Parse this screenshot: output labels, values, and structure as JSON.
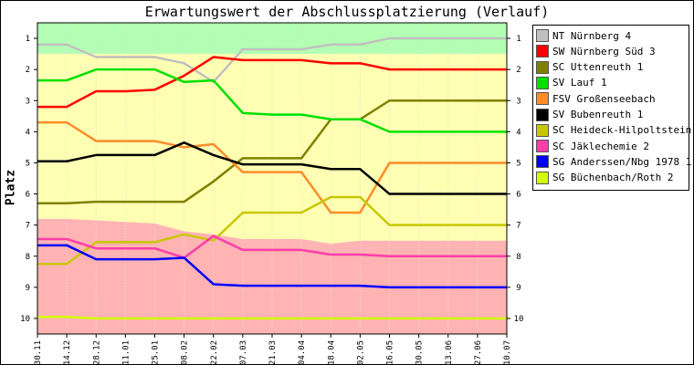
{
  "chart_data": {
    "type": "line",
    "title": "Erwartungswert der Abschlussplatzierung (Verlauf)",
    "ylabel": "Platz",
    "xlabel": "",
    "ylim": [
      0.5,
      10.5
    ],
    "y_inverted": true,
    "y_ticks": [
      1,
      2,
      3,
      4,
      5,
      6,
      7,
      8,
      9,
      10
    ],
    "categories": [
      "30.11",
      "14.12",
      "28.12",
      "11.01",
      "25.01",
      "08.02",
      "22.02",
      "07.03",
      "21.03",
      "04.04",
      "18.04",
      "02.05",
      "16.05",
      "30.05",
      "13.06",
      "27.06",
      "10.07"
    ],
    "bands": [
      {
        "name": "promotion",
        "color": "#b3ffb3",
        "upper_boundary": [
          0.5,
          0.5,
          0.5,
          0.5,
          0.5,
          0.5,
          0.5,
          0.5,
          0.5,
          0.5,
          0.5,
          0.5,
          0.5,
          0.5,
          0.5,
          0.5,
          0.5
        ],
        "lower_boundary": [
          1.5,
          1.5,
          1.5,
          1.5,
          1.5,
          1.5,
          1.5,
          1.5,
          1.5,
          1.5,
          1.5,
          1.5,
          1.5,
          1.5,
          1.5,
          1.5,
          1.5
        ]
      },
      {
        "name": "middle",
        "color": "#ffffb3",
        "upper_boundary": [
          1.5,
          1.5,
          1.5,
          1.5,
          1.5,
          1.5,
          1.5,
          1.5,
          1.5,
          1.5,
          1.5,
          1.5,
          1.5,
          1.5,
          1.5,
          1.5,
          1.5
        ],
        "lower_boundary": [
          6.8,
          6.8,
          6.85,
          6.9,
          6.95,
          7.2,
          7.3,
          7.45,
          7.45,
          7.45,
          7.6,
          7.5,
          7.5,
          7.5,
          7.5,
          7.5,
          7.5
        ]
      },
      {
        "name": "relegation",
        "color": "#ffb3b3",
        "upper_boundary": [
          6.8,
          6.8,
          6.85,
          6.9,
          6.95,
          7.2,
          7.3,
          7.45,
          7.45,
          7.45,
          7.6,
          7.5,
          7.5,
          7.5,
          7.5,
          7.5,
          7.5
        ],
        "lower_boundary": [
          10.5,
          10.5,
          10.5,
          10.5,
          10.5,
          10.5,
          10.5,
          10.5,
          10.5,
          10.5,
          10.5,
          10.5,
          10.5,
          10.5,
          10.5,
          10.5,
          10.5
        ]
      }
    ],
    "series": [
      {
        "name": "NT Nürnberg 4",
        "color": "#c0c0c0",
        "values": [
          1.2,
          1.2,
          1.6,
          1.6,
          1.6,
          1.8,
          2.4,
          1.35,
          1.35,
          1.35,
          1.2,
          1.2,
          1.0,
          1.0,
          1.0,
          1.0,
          1.0
        ]
      },
      {
        "name": "SW Nürnberg Süd 3",
        "color": "#ff0000",
        "values": [
          3.2,
          3.2,
          2.7,
          2.7,
          2.65,
          2.2,
          1.6,
          1.7,
          1.7,
          1.7,
          1.8,
          1.8,
          2.0,
          2.0,
          2.0,
          2.0,
          2.0
        ]
      },
      {
        "name": "SC Uttenreuth 1",
        "color": "#808000",
        "values": [
          6.3,
          6.3,
          6.25,
          6.25,
          6.25,
          6.25,
          5.6,
          4.85,
          4.85,
          4.85,
          3.6,
          3.6,
          3.0,
          3.0,
          3.0,
          3.0,
          3.0
        ]
      },
      {
        "name": "SV Lauf 1",
        "color": "#00e000",
        "values": [
          2.35,
          2.35,
          2.0,
          2.0,
          2.0,
          2.4,
          2.35,
          3.4,
          3.45,
          3.45,
          3.6,
          3.6,
          4.0,
          4.0,
          4.0,
          4.0,
          4.0
        ]
      },
      {
        "name": "FSV Großenseebach",
        "color": "#ff8c28",
        "values": [
          3.7,
          3.7,
          4.3,
          4.3,
          4.3,
          4.5,
          4.4,
          5.3,
          5.3,
          5.3,
          6.6,
          6.6,
          5.0,
          5.0,
          5.0,
          5.0,
          5.0
        ]
      },
      {
        "name": "SV Bubenreuth 1",
        "color": "#000000",
        "values": [
          4.95,
          4.95,
          4.75,
          4.75,
          4.75,
          4.35,
          4.75,
          5.05,
          5.05,
          5.05,
          5.2,
          5.2,
          6.0,
          6.0,
          6.0,
          6.0,
          6.0
        ]
      },
      {
        "name": "SC Heideck-Hilpoltstein 2",
        "color": "#c8c800",
        "values": [
          8.25,
          8.25,
          7.55,
          7.55,
          7.55,
          7.3,
          7.5,
          6.6,
          6.6,
          6.6,
          6.1,
          6.1,
          7.0,
          7.0,
          7.0,
          7.0,
          7.0
        ]
      },
      {
        "name": "SC Jäklechemie 2",
        "color": "#ff3caa",
        "values": [
          7.45,
          7.45,
          7.75,
          7.75,
          7.75,
          8.05,
          7.35,
          7.8,
          7.8,
          7.8,
          7.95,
          7.95,
          8.0,
          8.0,
          8.0,
          8.0,
          8.0
        ]
      },
      {
        "name": "SG Anderssen/Nbg 1978 1",
        "color": "#0000ff",
        "values": [
          7.65,
          7.65,
          8.1,
          8.1,
          8.1,
          8.05,
          8.9,
          8.95,
          8.95,
          8.95,
          8.95,
          8.95,
          9.0,
          9.0,
          9.0,
          9.0,
          9.0
        ]
      },
      {
        "name": "SG Büchenbach/Roth 2",
        "color": "#d2ff00",
        "values": [
          9.95,
          9.95,
          10.0,
          10.0,
          10.0,
          10.0,
          10.0,
          10.0,
          10.0,
          10.0,
          10.0,
          10.0,
          10.0,
          10.0,
          10.0,
          10.0,
          10.0
        ]
      }
    ]
  }
}
